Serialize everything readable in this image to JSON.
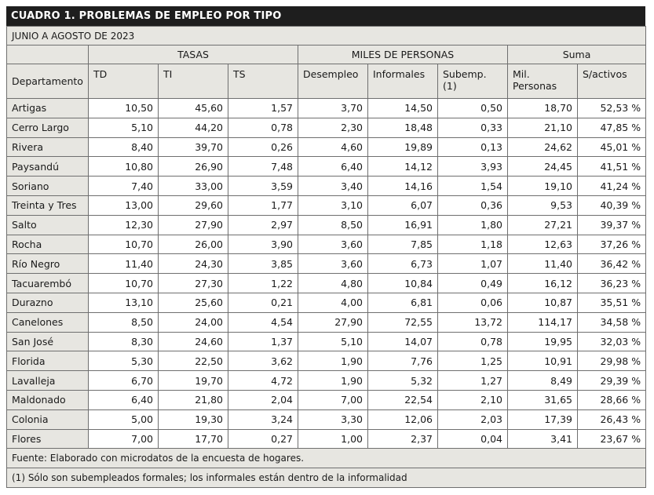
{
  "title": "CUADRO 1. PROBLEMAS DE EMPLEO POR TIPO",
  "subtitle": "JUNIO A AGOSTO DE 2023",
  "groups": {
    "tasas": "TASAS",
    "miles": "MILES DE PERSONAS",
    "suma": "Suma"
  },
  "columns": [
    "Departamento",
    "TD",
    "TI",
    "TS",
    "Desempleo",
    "Informales",
    "Subemp. (1)",
    "Mil. Personas",
    "S/activos"
  ],
  "rows": [
    [
      "Artigas",
      "10,50",
      "45,60",
      "1,57",
      "3,70",
      "14,50",
      "0,50",
      "18,70",
      "52,53 %"
    ],
    [
      "Cerro Largo",
      "5,10",
      "44,20",
      "0,78",
      "2,30",
      "18,48",
      "0,33",
      "21,10",
      "47,85 %"
    ],
    [
      "Rivera",
      "8,40",
      "39,70",
      "0,26",
      "4,60",
      "19,89",
      "0,13",
      "24,62",
      "45,01 %"
    ],
    [
      "Paysandú",
      "10,80",
      "26,90",
      "7,48",
      "6,40",
      "14,12",
      "3,93",
      "24,45",
      "41,51 %"
    ],
    [
      "Soriano",
      "7,40",
      "33,00",
      "3,59",
      "3,40",
      "14,16",
      "1,54",
      "19,10",
      "41,24 %"
    ],
    [
      "Treinta y Tres",
      "13,00",
      "29,60",
      "1,77",
      "3,10",
      "6,07",
      "0,36",
      "9,53",
      "40,39 %"
    ],
    [
      "Salto",
      "12,30",
      "27,90",
      "2,97",
      "8,50",
      "16,91",
      "1,80",
      "27,21",
      "39,37 %"
    ],
    [
      "Rocha",
      "10,70",
      "26,00",
      "3,90",
      "3,60",
      "7,85",
      "1,18",
      "12,63",
      "37,26 %"
    ],
    [
      "Río Negro",
      "11,40",
      "24,30",
      "3,85",
      "3,60",
      "6,73",
      "1,07",
      "11,40",
      "36,42 %"
    ],
    [
      "Tacuarembó",
      "10,70",
      "27,30",
      "1,22",
      "4,80",
      "10,84",
      "0,49",
      "16,12",
      "36,23 %"
    ],
    [
      "Durazno",
      "13,10",
      "25,60",
      "0,21",
      "4,00",
      "6,81",
      "0,06",
      "10,87",
      "35,51 %"
    ],
    [
      "Canelones",
      "8,50",
      "24,00",
      "4,54",
      "27,90",
      "72,55",
      "13,72",
      "114,17",
      "34,58 %"
    ],
    [
      "San José",
      "8,30",
      "24,60",
      "1,37",
      "5,10",
      "14,07",
      "0,78",
      "19,95",
      "32,03 %"
    ],
    [
      "Florida",
      "5,30",
      "22,50",
      "3,62",
      "1,90",
      "7,76",
      "1,25",
      "10,91",
      "29,98 %"
    ],
    [
      "Lavalleja",
      "6,70",
      "19,70",
      "4,72",
      "1,90",
      "5,32",
      "1,27",
      "8,49",
      "29,39 %"
    ],
    [
      "Maldonado",
      "6,40",
      "21,80",
      "2,04",
      "7,00",
      "22,54",
      "2,10",
      "31,65",
      "28,66 %"
    ],
    [
      "Colonia",
      "5,00",
      "19,30",
      "3,24",
      "3,30",
      "12,06",
      "2,03",
      "17,39",
      "26,43 %"
    ],
    [
      "Flores",
      "7,00",
      "17,70",
      "0,27",
      "1,00",
      "2,37",
      "0,04",
      "3,41",
      "23,67 %"
    ]
  ],
  "footer": {
    "source": "Fuente: Elaborado con microdatos de la encuesta de hogares.",
    "note": "(1) Sólo son subempleados formales; los informales están dentro de la informalidad"
  },
  "colors": {
    "title_bg": "#1e1e1e",
    "header_bg": "#e7e6e1",
    "border": "#6f6f6f"
  }
}
